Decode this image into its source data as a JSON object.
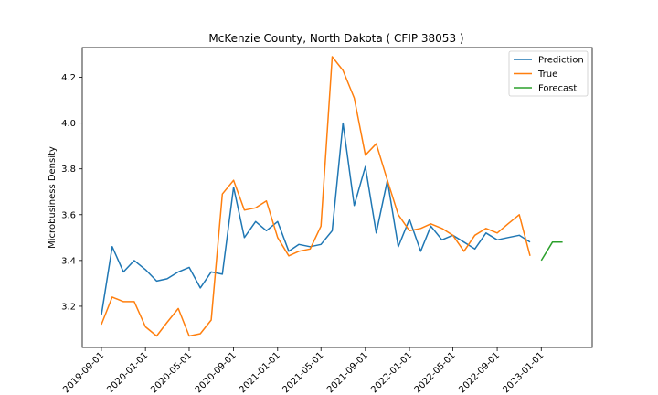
{
  "chart_data": {
    "type": "line",
    "title": "McKenzie County, North Dakota ( CFIP 38053 )",
    "xlabel": "",
    "ylabel": "Microbusiness Density",
    "ylim": [
      3.02,
      4.33
    ],
    "xlim": [
      "2019-07-10",
      "2023-05-22"
    ],
    "x_ticks": [
      "2019-09-01",
      "2020-01-01",
      "2020-05-01",
      "2020-09-01",
      "2021-01-01",
      "2021-05-01",
      "2021-09-01",
      "2022-01-01",
      "2022-05-01",
      "2022-09-01",
      "2023-01-01"
    ],
    "y_ticks": [
      3.2,
      3.4,
      3.6,
      3.8,
      4.0,
      4.2
    ],
    "grid": false,
    "legend": "top-right",
    "series": [
      {
        "name": "Prediction",
        "color": "#1f77b4",
        "x": [
          "2019-09-01",
          "2019-10-01",
          "2019-11-01",
          "2019-12-01",
          "2020-01-01",
          "2020-02-01",
          "2020-03-01",
          "2020-04-01",
          "2020-05-01",
          "2020-06-01",
          "2020-07-01",
          "2020-08-01",
          "2020-09-01",
          "2020-10-01",
          "2020-11-01",
          "2020-12-01",
          "2021-01-01",
          "2021-02-01",
          "2021-03-01",
          "2021-04-01",
          "2021-05-01",
          "2021-06-01",
          "2021-07-01",
          "2021-08-01",
          "2021-09-01",
          "2021-10-01",
          "2021-11-01",
          "2021-12-01",
          "2022-01-01",
          "2022-02-01",
          "2022-03-01",
          "2022-04-01",
          "2022-05-01",
          "2022-06-01",
          "2022-07-01",
          "2022-08-01",
          "2022-09-01",
          "2022-10-01",
          "2022-11-01",
          "2022-12-01"
        ],
        "values": [
          3.16,
          3.46,
          3.35,
          3.4,
          3.36,
          3.31,
          3.32,
          3.35,
          3.37,
          3.28,
          3.35,
          3.34,
          3.72,
          3.5,
          3.57,
          3.53,
          3.57,
          3.44,
          3.47,
          3.46,
          3.47,
          3.53,
          4.0,
          3.64,
          3.81,
          3.52,
          3.75,
          3.46,
          3.58,
          3.44,
          3.55,
          3.49,
          3.51,
          3.48,
          3.45,
          3.52,
          3.49,
          3.5,
          3.51,
          3.48
        ]
      },
      {
        "name": "True",
        "color": "#ff7f0e",
        "x": [
          "2019-09-01",
          "2019-10-01",
          "2019-11-01",
          "2019-12-01",
          "2020-01-01",
          "2020-02-01",
          "2020-03-01",
          "2020-04-01",
          "2020-05-01",
          "2020-06-01",
          "2020-07-01",
          "2020-08-01",
          "2020-09-01",
          "2020-10-01",
          "2020-11-01",
          "2020-12-01",
          "2021-01-01",
          "2021-02-01",
          "2021-03-01",
          "2021-04-01",
          "2021-05-01",
          "2021-06-01",
          "2021-07-01",
          "2021-08-01",
          "2021-09-01",
          "2021-10-01",
          "2021-11-01",
          "2021-12-01",
          "2022-01-01",
          "2022-02-01",
          "2022-03-01",
          "2022-04-01",
          "2022-05-01",
          "2022-06-01",
          "2022-07-01",
          "2022-08-01",
          "2022-09-01",
          "2022-10-01",
          "2022-11-01",
          "2022-12-01"
        ],
        "values": [
          3.12,
          3.24,
          3.22,
          3.22,
          3.11,
          3.07,
          3.13,
          3.19,
          3.07,
          3.08,
          3.14,
          3.69,
          3.75,
          3.62,
          3.63,
          3.66,
          3.5,
          3.42,
          3.44,
          3.45,
          3.55,
          4.29,
          4.23,
          4.11,
          3.86,
          3.91,
          3.75,
          3.6,
          3.53,
          3.54,
          3.56,
          3.54,
          3.51,
          3.44,
          3.51,
          3.54,
          3.52,
          3.56,
          3.6,
          3.42
        ]
      },
      {
        "name": "Forecast",
        "color": "#2ca02c",
        "x": [
          "2023-01-01",
          "2023-02-01",
          "2023-03-01"
        ],
        "values": [
          3.4,
          3.48,
          3.48
        ]
      }
    ]
  }
}
